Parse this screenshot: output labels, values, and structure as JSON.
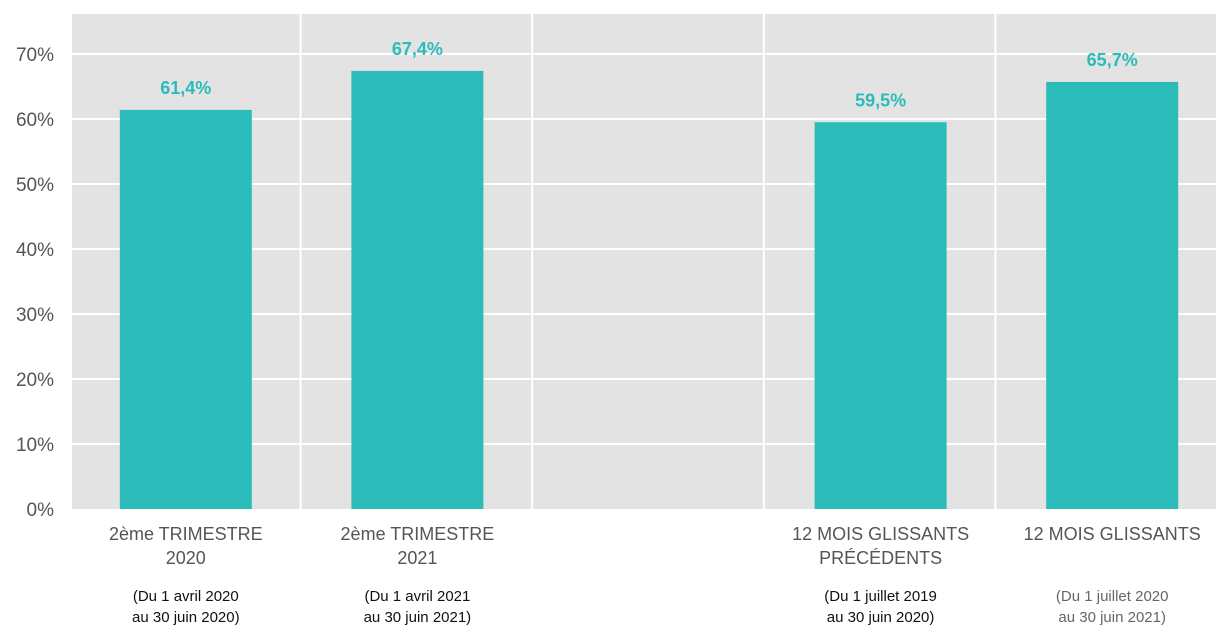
{
  "chart_data": {
    "type": "bar",
    "ylim": [
      0,
      70
    ],
    "yticks": [
      "0%",
      "10%",
      "20%",
      "30%",
      "40%",
      "50%",
      "60%",
      "70%"
    ],
    "grid": true,
    "colors": {
      "bar": "#2bbcba",
      "plot_bg": "#e3e3e3",
      "grid": "#ffffff",
      "label": "#2bbcba"
    },
    "categories": [
      {
        "line1": "2ème TRIMESTRE",
        "line2": "2020",
        "period1": "(Du 1 avril 2020",
        "period2": "au 30 juin 2020)"
      },
      {
        "line1": "2ème TRIMESTRE",
        "line2": "2021",
        "period1": "(Du 1 avril 2021",
        "period2": "au 30 juin 2021)"
      },
      {
        "line1": "",
        "line2": "",
        "period1": "",
        "period2": ""
      },
      {
        "line1": "12 MOIS GLISSANTS",
        "line2": "PRÉCÉDENTS",
        "period1": "(Du 1 juillet 2019",
        "period2": "au 30 juin 2020)"
      },
      {
        "line1": "12 MOIS GLISSANTS",
        "line2": "",
        "period1": "(Du 1 juillet 2020",
        "period2": "au 30 juin 2021)"
      }
    ],
    "values": [
      61.4,
      67.4,
      null,
      59.5,
      65.7
    ],
    "value_labels": [
      "61,4%",
      "67,4%",
      "",
      "59,5%",
      "65,7%"
    ]
  }
}
